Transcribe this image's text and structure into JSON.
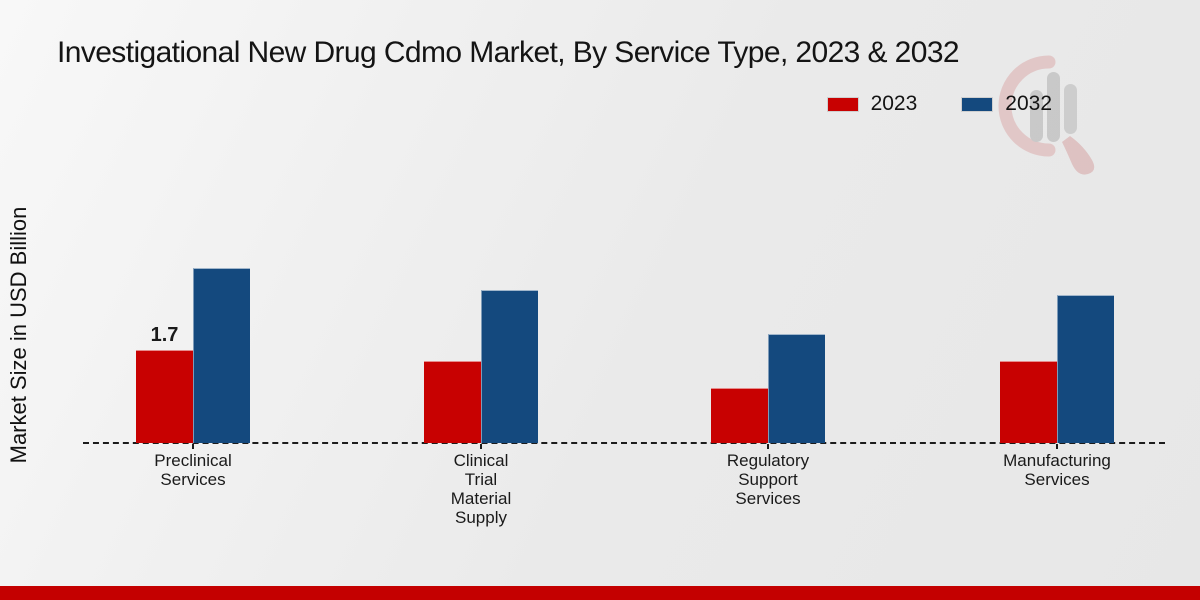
{
  "title": "Investigational New Drug Cdmo Market, By Service Type, 2023 & 2032",
  "ylabel": "Market Size in USD Billion",
  "legend": {
    "items": [
      {
        "label": "2023",
        "color": "#c80101"
      },
      {
        "label": "2032",
        "color": "#14497e"
      }
    ]
  },
  "colors": {
    "series_2023": "#c80101",
    "series_2032": "#14497e",
    "footer_strip": "#c40000",
    "background": "#ececec",
    "baseline": "#1c1c1c"
  },
  "watermark": {
    "name": "mrfr-logo-watermark"
  },
  "chart_data": {
    "type": "bar",
    "categories": [
      "Preclinical\nServices",
      "Clinical\nTrial\nMaterial\nSupply",
      "Regulatory\nSupport\nServices",
      "Manufacturing\nServices"
    ],
    "series": [
      {
        "name": "2023",
        "color": "#c80101",
        "values": [
          1.7,
          1.5,
          1.0,
          1.5
        ]
      },
      {
        "name": "2032",
        "color": "#14497e",
        "values": [
          3.2,
          2.8,
          2.0,
          2.7
        ]
      }
    ],
    "bar_labels": {
      "series": "2023",
      "labels": [
        "1.7",
        "",
        "",
        ""
      ]
    },
    "title": "Investigational New Drug Cdmo Market, By Service Type, 2023 & 2032",
    "xlabel": "",
    "ylabel": "Market Size in USD Billion",
    "ylim": [
      0,
      4
    ],
    "grid": false,
    "legend_position": "top-right",
    "baseline_style": "dashed"
  }
}
